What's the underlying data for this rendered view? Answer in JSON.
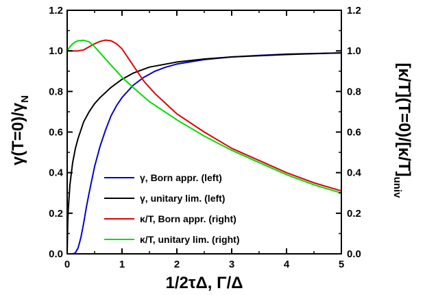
{
  "chart_data": {
    "type": "line",
    "title": "",
    "xlabel": "1/2τΔ,   Γ/Δ",
    "ylabel_left": {
      "main": "γ(T=0)/γ",
      "sub": "N"
    },
    "ylabel_right": {
      "main": "[κ/T](T=0)/[κ/T]",
      "sub": "univ"
    },
    "xlim": [
      0,
      5
    ],
    "ylim": [
      0,
      1.2
    ],
    "ylim_right": [
      0,
      1.2
    ],
    "x_ticks": [
      0,
      1,
      2,
      3,
      4,
      5
    ],
    "y_ticks": [
      "0.0",
      "0.2",
      "0.4",
      "0.6",
      "0.8",
      "1.0",
      "1.2"
    ],
    "grid": false,
    "legend_position": "lower-center",
    "series": [
      {
        "name": "γ, Born appr. (left)",
        "color": "#0000cc",
        "x": [
          0,
          0.1,
          0.15,
          0.2,
          0.25,
          0.3,
          0.35,
          0.4,
          0.5,
          0.6,
          0.7,
          0.8,
          0.9,
          1.0,
          1.2,
          1.4,
          1.6,
          1.8,
          2.0,
          2.5,
          3.0,
          3.5,
          4.0,
          4.5,
          5.0
        ],
        "y": [
          0,
          0,
          0.005,
          0.03,
          0.08,
          0.15,
          0.23,
          0.3,
          0.43,
          0.53,
          0.61,
          0.68,
          0.73,
          0.77,
          0.83,
          0.87,
          0.9,
          0.92,
          0.935,
          0.957,
          0.97,
          0.978,
          0.984,
          0.987,
          0.99
        ]
      },
      {
        "name": "γ, unitary lim. (left)",
        "color": "#000000",
        "x": [
          0,
          0.01,
          0.02,
          0.05,
          0.1,
          0.15,
          0.2,
          0.3,
          0.4,
          0.5,
          0.6,
          0.8,
          1.0,
          1.2,
          1.5,
          2.0,
          2.5,
          3.0,
          3.5,
          4.0,
          4.5,
          5.0
        ],
        "y": [
          0,
          0.15,
          0.22,
          0.34,
          0.45,
          0.52,
          0.57,
          0.65,
          0.7,
          0.74,
          0.77,
          0.82,
          0.86,
          0.89,
          0.92,
          0.945,
          0.96,
          0.97,
          0.976,
          0.982,
          0.986,
          0.99
        ]
      },
      {
        "name": "κ/T, Born appr. (right)",
        "color": "#dd0000",
        "x": [
          0,
          0.1,
          0.2,
          0.3,
          0.4,
          0.5,
          0.6,
          0.7,
          0.8,
          0.9,
          1.0,
          1.2,
          1.4,
          1.6,
          1.8,
          2.0,
          2.5,
          3.0,
          3.5,
          4.0,
          4.5,
          5.0
        ],
        "y": [
          1.0,
          1.0,
          1.0,
          1.005,
          1.02,
          1.035,
          1.047,
          1.053,
          1.05,
          1.035,
          1.01,
          0.93,
          0.85,
          0.79,
          0.74,
          0.69,
          0.6,
          0.52,
          0.46,
          0.4,
          0.35,
          0.31
        ]
      },
      {
        "name": "κ/T, unitary lim. (right)",
        "color": "#00dd00",
        "x": [
          0,
          0.05,
          0.1,
          0.15,
          0.2,
          0.3,
          0.4,
          0.5,
          0.6,
          0.8,
          1.0,
          1.2,
          1.5,
          2.0,
          2.5,
          3.0,
          3.5,
          4.0,
          4.5,
          5.0
        ],
        "y": [
          1.0,
          1.02,
          1.035,
          1.045,
          1.05,
          1.052,
          1.045,
          1.02,
          0.99,
          0.93,
          0.87,
          0.82,
          0.75,
          0.66,
          0.58,
          0.51,
          0.45,
          0.39,
          0.34,
          0.3
        ]
      }
    ]
  }
}
